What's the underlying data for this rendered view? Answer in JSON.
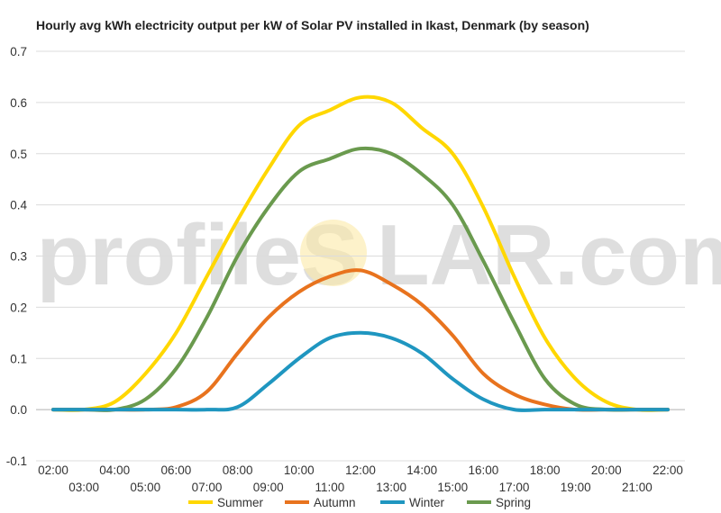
{
  "watermark": {
    "left": "profileS",
    "right": "LAR.com"
  },
  "chart_data": {
    "type": "line",
    "title": "Hourly avg kWh electricity output per kW of Solar PV installed in Ikast, Denmark (by season)",
    "xlabel": "",
    "ylabel": "",
    "x": [
      "02:00",
      "03:00",
      "04:00",
      "05:00",
      "06:00",
      "07:00",
      "08:00",
      "09:00",
      "10:00",
      "11:00",
      "12:00",
      "13:00",
      "14:00",
      "15:00",
      "16:00",
      "17:00",
      "18:00",
      "19:00",
      "20:00",
      "21:00",
      "22:00"
    ],
    "ylim": [
      -0.1,
      0.7
    ],
    "yticks": [
      "-0.1",
      "0.0",
      "0.1",
      "0.2",
      "0.3",
      "0.4",
      "0.5",
      "0.6",
      "0.7"
    ],
    "grid": true,
    "legend": "bottom",
    "series": [
      {
        "name": "Summer",
        "color": "#ffd700",
        "values": [
          0.0,
          0.0,
          0.015,
          0.07,
          0.15,
          0.26,
          0.37,
          0.47,
          0.555,
          0.585,
          0.61,
          0.6,
          0.55,
          0.5,
          0.395,
          0.26,
          0.14,
          0.06,
          0.015,
          0.0,
          0.0
        ]
      },
      {
        "name": "Autumn",
        "color": "#e8731e",
        "values": [
          0.0,
          0.0,
          0.0,
          0.0,
          0.005,
          0.035,
          0.11,
          0.18,
          0.23,
          0.26,
          0.272,
          0.245,
          0.205,
          0.145,
          0.07,
          0.03,
          0.01,
          0.0,
          0.0,
          0.0,
          0.0
        ]
      },
      {
        "name": "Winter",
        "color": "#1f96c0",
        "values": [
          0.0,
          0.0,
          0.0,
          0.0,
          0.0,
          0.0,
          0.005,
          0.05,
          0.1,
          0.14,
          0.15,
          0.14,
          0.11,
          0.06,
          0.02,
          0.0,
          0.0,
          0.0,
          0.0,
          0.0,
          0.0
        ]
      },
      {
        "name": "Spring",
        "color": "#6a9a4e",
        "values": [
          0.0,
          0.0,
          0.0,
          0.02,
          0.08,
          0.18,
          0.3,
          0.395,
          0.465,
          0.49,
          0.51,
          0.5,
          0.46,
          0.4,
          0.29,
          0.17,
          0.06,
          0.01,
          0.0,
          0.0,
          0.0
        ]
      }
    ]
  }
}
